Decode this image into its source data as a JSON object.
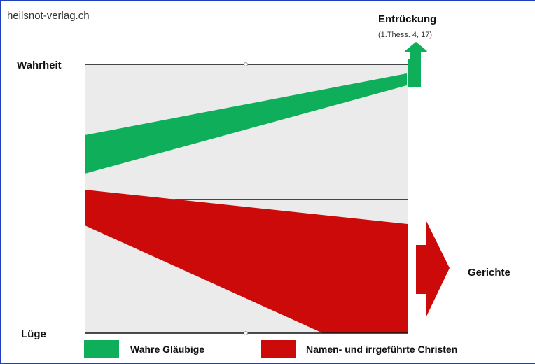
{
  "header": {
    "site": "heilsnot-verlag.ch",
    "top_title": "Entrückung",
    "top_reference": "(1.Thess. 4, 17)"
  },
  "scale": {
    "top_label": "Wahrheit",
    "bottom_label": "Lüge",
    "right_label": "Gerichte"
  },
  "legend": {
    "green": {
      "label": "Wahre Gläubige",
      "color": "#0fae5a"
    },
    "red": {
      "label": "Namen- und irrgeführte Christen",
      "color": "#cc0a0a"
    }
  },
  "colors": {
    "panel": "#ebebeb",
    "green": "#0fae5a",
    "red": "#cc0a0a",
    "line": "#111111",
    "border": "#1f3fbf"
  }
}
